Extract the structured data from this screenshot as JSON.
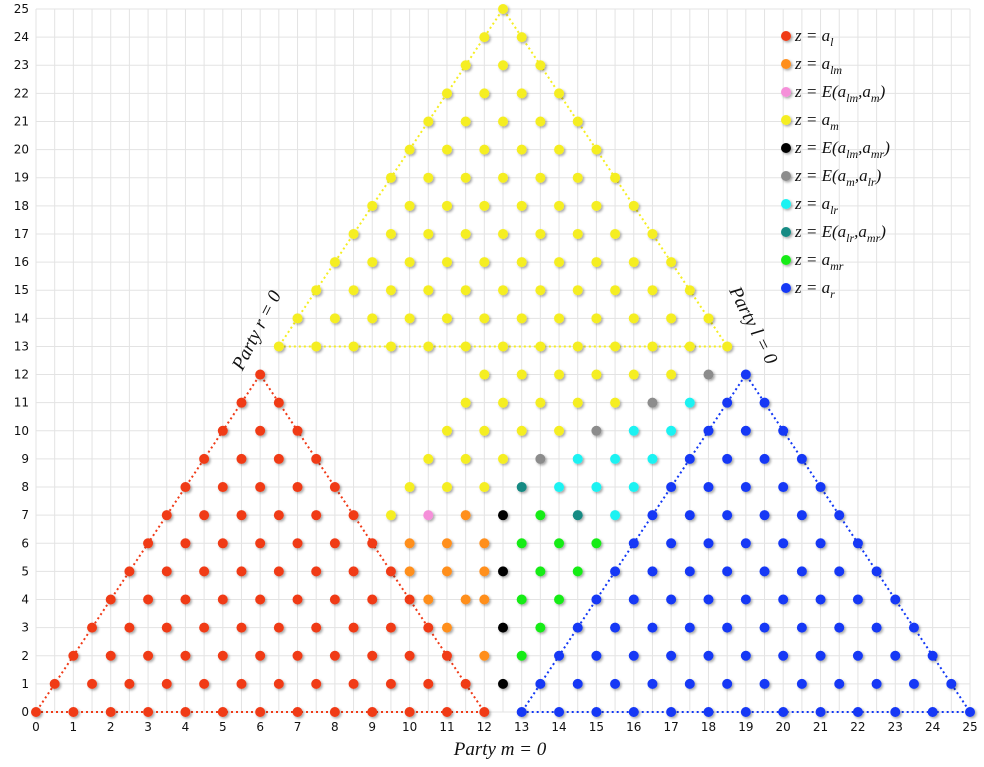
{
  "chart_data": {
    "type": "scatter",
    "xlim": [
      0,
      25
    ],
    "ylim": [
      0,
      25
    ],
    "x_ticks": [
      "0",
      "1",
      "2",
      "3",
      "4",
      "5",
      "6",
      "7",
      "8",
      "9",
      "10",
      "11",
      "12",
      "13",
      "14",
      "15",
      "16",
      "17",
      "18",
      "19",
      "20",
      "21",
      "22",
      "23",
      "24",
      "25"
    ],
    "y_ticks": [
      "0",
      "1",
      "2",
      "3",
      "4",
      "5",
      "6",
      "7",
      "8",
      "9",
      "10",
      "11",
      "12",
      "13",
      "14",
      "15",
      "16",
      "17",
      "18",
      "19",
      "20",
      "21",
      "22",
      "23",
      "24",
      "25"
    ],
    "grid": true,
    "legend_position": "top-right",
    "boundary_labels": {
      "bottom": "Party m = 0",
      "left": "Party r = 0",
      "right": "Party l = 0"
    },
    "series": [
      {
        "key": "al",
        "color": "#f03a17",
        "legend": [
          "z = a",
          "l",
          ""
        ]
      },
      {
        "key": "alm",
        "color": "#ff8f1f",
        "legend": [
          "z = a",
          "lm",
          ""
        ]
      },
      {
        "key": "E_alm_am",
        "color": "#f58fd9",
        "legend": [
          "z = E(a",
          "lm",
          ",a",
          "m",
          ")"
        ]
      },
      {
        "key": "am",
        "color": "#f5ee22",
        "legend": [
          "z = a",
          "m",
          ""
        ]
      },
      {
        "key": "E_alm_amr",
        "color": "#000000",
        "legend": [
          "z = E(a",
          "lm",
          ",a",
          "mr",
          ")"
        ]
      },
      {
        "key": "E_am_alr",
        "color": "#8c8c8c",
        "legend": [
          "z = E(a",
          "m",
          ",a",
          "lr",
          ")"
        ]
      },
      {
        "key": "alr",
        "color": "#1ff2f2",
        "legend": [
          "z = a",
          "lr",
          ""
        ]
      },
      {
        "key": "E_alr_amr",
        "color": "#138a83",
        "legend": [
          "z = E(a",
          "lr",
          ",a",
          "mr",
          ")"
        ]
      },
      {
        "key": "amr",
        "color": "#19ec19",
        "legend": [
          "z = a",
          "mr",
          ""
        ]
      },
      {
        "key": "ar",
        "color": "#1238f5",
        "legend": [
          "z = a",
          "r",
          ""
        ]
      }
    ],
    "regions": {
      "al": "triangle vertices (0,0) (12,0) (6,12), half-integer x steps",
      "ar": "triangle vertices (13,0) (25,0) (19,12), half-integer x steps",
      "am": "triangle vertices (6.5,13) (18.5,13) (12.5,25) plus central rows y=7..12",
      "alm": [
        [
          10,
          6
        ],
        [
          11,
          6
        ],
        [
          12,
          6
        ],
        [
          10,
          5
        ],
        [
          11,
          5
        ],
        [
          12,
          5
        ],
        [
          10.5,
          7
        ],
        [
          11.5,
          7
        ],
        [
          10.5,
          4
        ],
        [
          11.5,
          4
        ],
        [
          12,
          4
        ],
        [
          11,
          3
        ],
        [
          12,
          2
        ]
      ],
      "E_alm_am": [
        [
          10.5,
          7
        ],
        [
          11.5,
          8
        ]
      ],
      "E_alm_amr": [
        [
          12.5,
          7
        ],
        [
          12.5,
          5
        ],
        [
          12.5,
          3
        ],
        [
          12.5,
          1
        ]
      ],
      "E_am_alr": [
        [
          18,
          12
        ],
        [
          16.5,
          11
        ],
        [
          15,
          10
        ],
        [
          13.5,
          9
        ]
      ],
      "alr": [
        [
          17.5,
          11
        ],
        [
          16,
          10
        ],
        [
          17,
          10
        ],
        [
          14.5,
          9
        ],
        [
          15.5,
          9
        ],
        [
          16.5,
          9
        ],
        [
          14,
          8
        ],
        [
          15,
          8
        ],
        [
          16,
          8
        ],
        [
          15.5,
          7
        ]
      ],
      "E_alr_amr": [
        [
          13,
          8
        ],
        [
          14.5,
          7
        ]
      ],
      "amr": [
        [
          13.5,
          7
        ],
        [
          13,
          6
        ],
        [
          14,
          6
        ],
        [
          15,
          6
        ],
        [
          13.5,
          5
        ],
        [
          14.5,
          5
        ],
        [
          13,
          4
        ],
        [
          14,
          4
        ],
        [
          13.5,
          3
        ],
        [
          13,
          2
        ]
      ]
    }
  }
}
